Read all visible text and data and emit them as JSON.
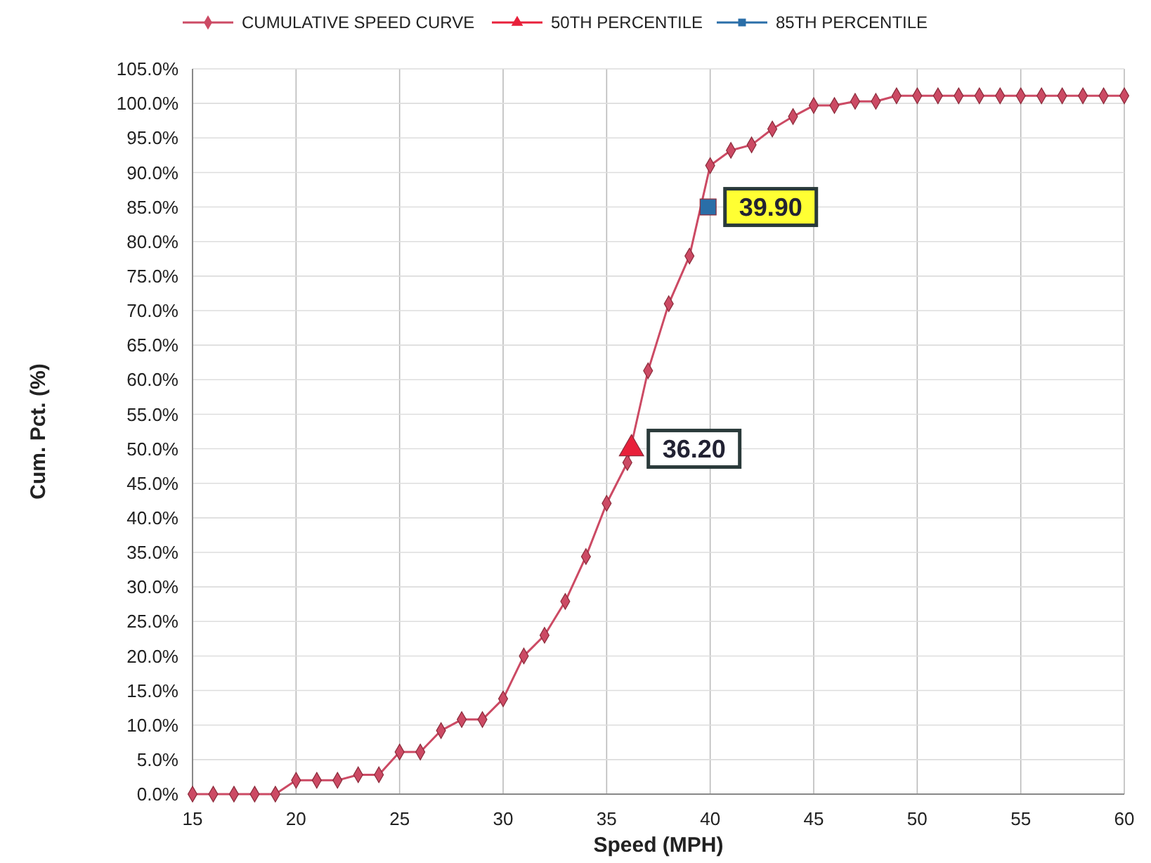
{
  "chart_data": {
    "type": "line",
    "xlabel": "Speed (MPH)",
    "ylabel": "Cum. Pct. (%)",
    "xlim": [
      15,
      60
    ],
    "xticks": [
      15,
      20,
      25,
      30,
      35,
      40,
      45,
      50,
      55,
      60
    ],
    "ylim": [
      0,
      105
    ],
    "yticks": [
      {
        "value": 0,
        "label": "0.0%"
      },
      {
        "value": 5,
        "label": "5.0%"
      },
      {
        "value": 10,
        "label": "10.0%"
      },
      {
        "value": 15,
        "label": "15.0%"
      },
      {
        "value": 20,
        "label": "20.0%"
      },
      {
        "value": 25,
        "label": "25.0%"
      },
      {
        "value": 30,
        "label": "30.0%"
      },
      {
        "value": 35,
        "label": "35.0%"
      },
      {
        "value": 40,
        "label": "40.0%"
      },
      {
        "value": 45,
        "label": "45.0%"
      },
      {
        "value": 50,
        "label": "50.0%"
      },
      {
        "value": 55,
        "label": "55.0%"
      },
      {
        "value": 60,
        "label": "60.0%"
      },
      {
        "value": 65,
        "label": "65.0%"
      },
      {
        "value": 70,
        "label": "70.0%"
      },
      {
        "value": 75,
        "label": "75.0%"
      },
      {
        "value": 80,
        "label": "80.0%"
      },
      {
        "value": 85,
        "label": "85.0%"
      },
      {
        "value": 90,
        "label": "90.0%"
      },
      {
        "value": 95,
        "label": "95.0%"
      },
      {
        "value": 100,
        "label": "100.0%"
      },
      {
        "value": 105,
        "label": "105.0%"
      }
    ],
    "grid": true,
    "legend": "top",
    "series": [
      {
        "name": "CUMULATIVE SPEED CURVE",
        "marker": "diamond",
        "color": "#cc4a64",
        "x": [
          15,
          16,
          17,
          18,
          19,
          20,
          21,
          22,
          23,
          24,
          25,
          26,
          27,
          28,
          29,
          30,
          31,
          32,
          33,
          34,
          35,
          36,
          37,
          38,
          39,
          40,
          41,
          42,
          43,
          44,
          45,
          46,
          47,
          48,
          49,
          50,
          51,
          52,
          53,
          54,
          55,
          56,
          57,
          58,
          59,
          60
        ],
        "values": [
          0,
          0,
          0,
          0,
          0,
          2,
          2,
          2,
          2.8,
          2.8,
          6.1,
          6.1,
          9.2,
          10.8,
          10.8,
          13.8,
          20,
          23,
          27.9,
          34.4,
          42.1,
          48,
          61.3,
          71,
          77.9,
          91,
          93.2,
          94,
          96.3,
          98.1,
          99.7,
          99.7,
          100.3,
          100.3,
          101.1,
          101.1,
          101.1,
          101.1,
          101.1,
          101.1,
          101.1,
          101.1,
          101.1,
          101.1,
          101.1,
          101.1
        ]
      },
      {
        "name": "50TH PERCENTILE",
        "type": "scatter",
        "marker": "triangle",
        "color": "#e8203a",
        "x": [
          36.2
        ],
        "values": [
          50
        ]
      },
      {
        "name": "85TH PERCENTILE",
        "type": "scatter",
        "marker": "square",
        "color": "#2a6ea8",
        "x": [
          39.9
        ],
        "values": [
          85
        ]
      }
    ],
    "annotations": [
      {
        "text": "36.20",
        "x": 36.2,
        "y": 50
      },
      {
        "text": "39.90",
        "x": 39.9,
        "y": 85
      }
    ]
  }
}
